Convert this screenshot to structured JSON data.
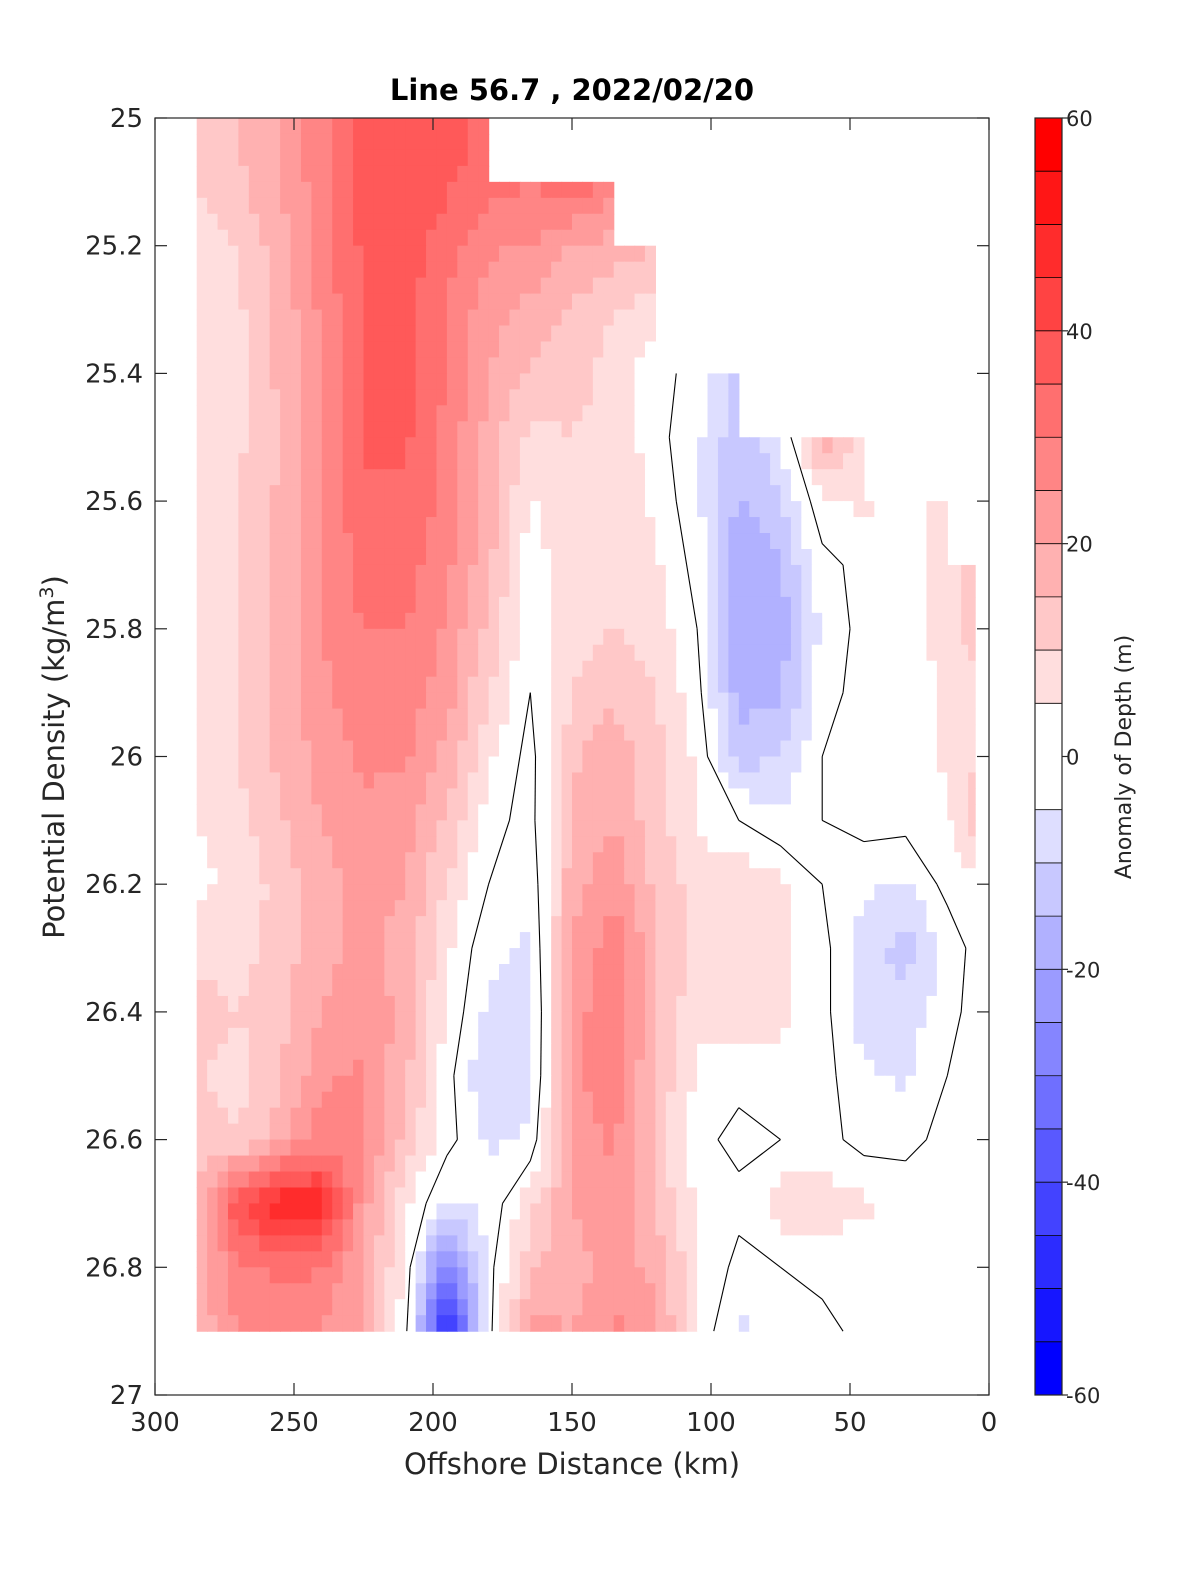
{
  "chart_data": {
    "type": "heatmap",
    "title": "Line 56.7 , 2022/02/20",
    "xlabel": "Offshore Distance (km)",
    "ylabel": "Potential Density (kg/m",
    "ylabel_sup": "3",
    "ylabel_close": ")",
    "colorbar_label": "Anomaly of Depth (m)",
    "xlim": [
      300,
      0
    ],
    "ylim": [
      25,
      27
    ],
    "x_reversed": true,
    "y_reversed": true,
    "grid": false,
    "xticks": [
      300,
      250,
      200,
      150,
      100,
      50,
      0
    ],
    "xtick_labels": [
      "300",
      "250",
      "200",
      "150",
      "100",
      "50",
      "0"
    ],
    "yticks": [
      25,
      25.2,
      25.4,
      25.6,
      25.8,
      26,
      26.2,
      26.4,
      26.6,
      26.8,
      27
    ],
    "ytick_labels": [
      "25",
      "25.2",
      "25.4",
      "25.6",
      "25.8",
      "26",
      "26.2",
      "26.4",
      "26.6",
      "26.8",
      "27"
    ],
    "colorbar_ticks": [
      60,
      40,
      20,
      0,
      -20,
      -40,
      -60
    ],
    "colorbar_tick_labels": [
      "60",
      "40",
      "20",
      "0",
      "-20",
      "-40",
      "-60"
    ],
    "clim": [
      -60,
      60
    ],
    "levels": [
      -60,
      -55,
      -50,
      -45,
      -40,
      -35,
      -30,
      -25,
      -20,
      -15,
      -10,
      -5,
      5,
      10,
      15,
      20,
      25,
      30,
      35,
      40,
      45,
      50,
      55,
      60
    ],
    "x": [
      285,
      270,
      255,
      240,
      225,
      210,
      195,
      180,
      165,
      150,
      135,
      120,
      105,
      90,
      75,
      60,
      45,
      30,
      15,
      5
    ],
    "y": [
      25.0,
      25.1,
      25.2,
      25.3,
      25.4,
      25.5,
      25.6,
      25.7,
      25.8,
      25.9,
      26.0,
      26.1,
      26.2,
      26.3,
      26.4,
      26.5,
      26.6,
      26.7,
      26.8,
      26.9
    ],
    "z": [
      [
        12,
        15,
        20,
        28,
        38,
        40,
        38,
        33,
        null,
        null,
        null,
        null,
        null,
        null,
        null,
        null,
        null,
        null,
        null,
        null
      ],
      [
        10,
        14,
        20,
        28,
        38,
        40,
        36,
        32,
        30,
        34,
        28,
        null,
        null,
        null,
        null,
        null,
        null,
        null,
        null,
        null
      ],
      [
        6,
        10,
        18,
        28,
        36,
        38,
        32,
        26,
        25,
        20,
        18,
        15,
        null,
        null,
        null,
        null,
        null,
        null,
        null,
        null
      ],
      [
        5,
        9,
        16,
        26,
        36,
        36,
        30,
        22,
        18,
        14,
        10,
        8,
        null,
        -6,
        null,
        null,
        null,
        null,
        null,
        null
      ],
      [
        5,
        9,
        16,
        26,
        36,
        36,
        30,
        20,
        15,
        12,
        8,
        2,
        -2,
        -12,
        null,
        null,
        null,
        null,
        null,
        null
      ],
      [
        5,
        9,
        15,
        26,
        36,
        36,
        28,
        18,
        8,
        10,
        8,
        2,
        -4,
        -14,
        -6,
        18,
        8,
        null,
        null,
        null
      ],
      [
        6,
        10,
        16,
        26,
        34,
        34,
        28,
        18,
        4,
        10,
        10,
        4,
        -4,
        -16,
        -10,
        4,
        6,
        2,
        8,
        null
      ],
      [
        6,
        10,
        16,
        25,
        32,
        32,
        26,
        16,
        2,
        8,
        10,
        6,
        -2,
        -18,
        -16,
        -2,
        2,
        2,
        10,
        10
      ],
      [
        6,
        10,
        16,
        25,
        30,
        30,
        24,
        14,
        2,
        8,
        10,
        8,
        0,
        -20,
        -18,
        -4,
        2,
        2,
        8,
        12
      ],
      [
        6,
        10,
        16,
        24,
        28,
        28,
        22,
        10,
        0,
        10,
        14,
        10,
        2,
        -18,
        -16,
        -2,
        2,
        2,
        6,
        8
      ],
      [
        6,
        10,
        16,
        22,
        26,
        26,
        18,
        6,
        -2,
        14,
        18,
        12,
        4,
        -12,
        -10,
        0,
        2,
        2,
        6,
        10
      ],
      [
        5,
        8,
        14,
        20,
        24,
        22,
        14,
        2,
        -2,
        16,
        20,
        12,
        4,
        0,
        -4,
        0,
        2,
        2,
        4,
        12
      ],
      [
        4,
        6,
        12,
        18,
        22,
        20,
        10,
        0,
        -4,
        18,
        24,
        14,
        8,
        10,
        6,
        0,
        -4,
        -6,
        2,
        4
      ],
      [
        8,
        8,
        12,
        18,
        22,
        18,
        6,
        -4,
        -6,
        20,
        28,
        16,
        8,
        10,
        6,
        2,
        -8,
        -12,
        -4,
        2
      ],
      [
        12,
        10,
        14,
        20,
        24,
        18,
        4,
        -6,
        -8,
        22,
        30,
        16,
        6,
        8,
        6,
        2,
        -8,
        -8,
        -2,
        2
      ],
      [
        10,
        8,
        14,
        24,
        26,
        16,
        2,
        -10,
        -8,
        24,
        28,
        14,
        4,
        2,
        4,
        2,
        -4,
        -6,
        0,
        2
      ],
      [
        12,
        10,
        18,
        28,
        26,
        14,
        2,
        -6,
        -4,
        22,
        26,
        14,
        2,
        -2,
        0,
        2,
        -2,
        -2,
        2,
        2
      ],
      [
        14,
        40,
        50,
        48,
        22,
        6,
        -6,
        -4,
        8,
        20,
        24,
        14,
        4,
        2,
        8,
        8,
        6,
        4,
        2,
        2
      ],
      [
        16,
        28,
        32,
        30,
        20,
        4,
        -30,
        -2,
        14,
        18,
        22,
        18,
        6,
        -2,
        0,
        2,
        2,
        2,
        2,
        2
      ],
      [
        16,
        26,
        26,
        24,
        20,
        2,
        -50,
        -2,
        22,
        20,
        26,
        22,
        4,
        -6,
        -4,
        -2,
        2,
        2,
        2,
        2
      ]
    ]
  }
}
